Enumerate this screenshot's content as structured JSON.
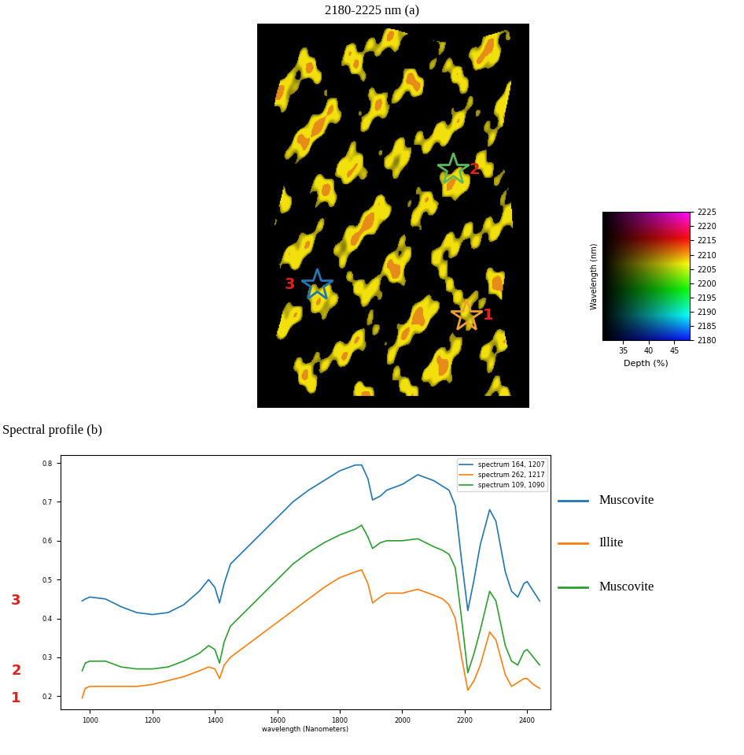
{
  "chart_data": [
    {
      "type": "image",
      "title": "2180-2225 nm (a)",
      "markers": [
        {
          "label": "1",
          "color": "#f0a030"
        },
        {
          "label": "2",
          "color": "#5cb85c"
        },
        {
          "label": "3",
          "color": "#1f77b4"
        }
      ],
      "colorbar": {
        "xlabel": "Depth (%)",
        "ylabel": "Wavelength (nm)",
        "xlim": [
          31,
          48
        ],
        "xticks": [
          35,
          40,
          45
        ],
        "ylim": [
          2180,
          2225
        ],
        "yticks": [
          2180,
          2185,
          2190,
          2195,
          2200,
          2205,
          2210,
          2215,
          2220,
          2225
        ]
      }
    },
    {
      "type": "line",
      "title": "Spectral profile (b)",
      "xlabel": "wavelength (Nanometers)",
      "x": [
        975,
        985,
        1000,
        1050,
        1100,
        1150,
        1200,
        1250,
        1300,
        1350,
        1380,
        1400,
        1415,
        1430,
        1450,
        1500,
        1550,
        1600,
        1650,
        1700,
        1750,
        1800,
        1850,
        1870,
        1890,
        1905,
        1930,
        1950,
        2000,
        2050,
        2100,
        2130,
        2150,
        2170,
        2190,
        2210,
        2230,
        2250,
        2280,
        2300,
        2330,
        2350,
        2370,
        2390,
        2400,
        2420,
        2440
      ],
      "xlim": [
        905,
        2475
      ],
      "xticks": [
        1000,
        1200,
        1400,
        1600,
        1800,
        2000,
        2200,
        2400
      ],
      "ylim": [
        0.165,
        0.82
      ],
      "yticks": [
        0.2,
        0.3,
        0.4,
        0.5,
        0.6,
        0.7,
        0.8
      ],
      "legend": "upper right",
      "series": [
        {
          "name": "spectrum 164, 1207",
          "color": "#1f77b4",
          "side_label": "3",
          "mineral": "Muscovite",
          "values": [
            0.445,
            0.45,
            0.455,
            0.45,
            0.43,
            0.415,
            0.41,
            0.415,
            0.435,
            0.47,
            0.5,
            0.48,
            0.44,
            0.49,
            0.54,
            0.58,
            0.62,
            0.66,
            0.7,
            0.73,
            0.755,
            0.78,
            0.795,
            0.795,
            0.76,
            0.705,
            0.715,
            0.73,
            0.745,
            0.77,
            0.755,
            0.74,
            0.73,
            0.69,
            0.55,
            0.42,
            0.5,
            0.59,
            0.68,
            0.65,
            0.52,
            0.47,
            0.455,
            0.49,
            0.495,
            0.47,
            0.445
          ]
        },
        {
          "name": "spectrum 262, 1217",
          "color": "#ff7f0e",
          "side_label": "1",
          "mineral": "Illite",
          "values": [
            0.195,
            0.22,
            0.225,
            0.225,
            0.225,
            0.225,
            0.23,
            0.24,
            0.25,
            0.265,
            0.275,
            0.27,
            0.245,
            0.28,
            0.3,
            0.33,
            0.36,
            0.39,
            0.42,
            0.45,
            0.48,
            0.505,
            0.52,
            0.525,
            0.49,
            0.44,
            0.455,
            0.465,
            0.465,
            0.475,
            0.46,
            0.45,
            0.435,
            0.4,
            0.3,
            0.215,
            0.24,
            0.28,
            0.365,
            0.345,
            0.255,
            0.225,
            0.235,
            0.245,
            0.245,
            0.23,
            0.22
          ]
        },
        {
          "name": "spectrum 109, 1090",
          "color": "#2ca02c",
          "side_label": "2",
          "mineral": "Muscovite",
          "values": [
            0.265,
            0.285,
            0.29,
            0.29,
            0.275,
            0.27,
            0.27,
            0.275,
            0.29,
            0.31,
            0.33,
            0.32,
            0.285,
            0.34,
            0.38,
            0.42,
            0.46,
            0.5,
            0.54,
            0.57,
            0.595,
            0.615,
            0.63,
            0.64,
            0.61,
            0.58,
            0.595,
            0.6,
            0.6,
            0.605,
            0.585,
            0.575,
            0.565,
            0.53,
            0.4,
            0.26,
            0.31,
            0.37,
            0.47,
            0.445,
            0.33,
            0.29,
            0.28,
            0.315,
            0.32,
            0.3,
            0.28
          ]
        }
      ]
    }
  ]
}
